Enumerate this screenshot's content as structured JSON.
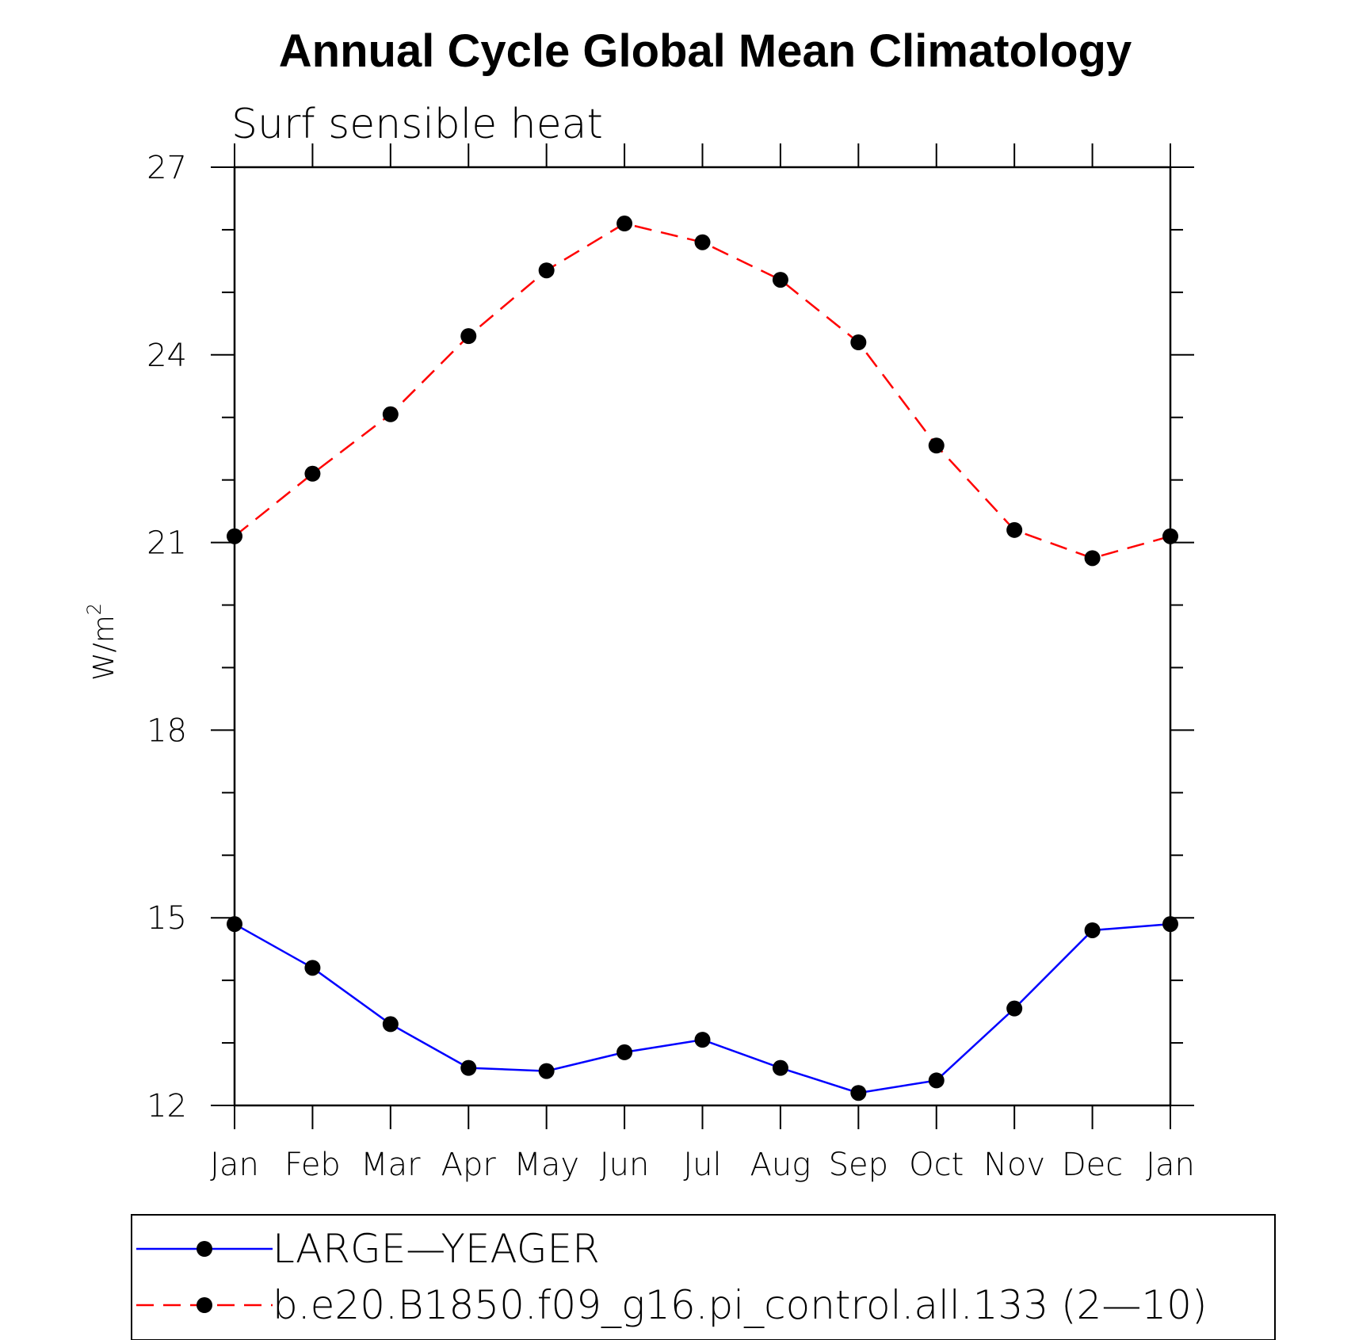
{
  "chart_data": {
    "type": "line",
    "title": "Annual Cycle Global Mean Climatology",
    "subtitle": "Surf sensible heat",
    "xlabel": "",
    "ylabel": "W/m",
    "ylabel_superscript": "2",
    "ylim": [
      12,
      27
    ],
    "yticks": [
      "12",
      "15",
      "18",
      "21",
      "24",
      "27"
    ],
    "yminor_step": 1,
    "categories": [
      "Jan",
      "Feb",
      "Mar",
      "Apr",
      "May",
      "Jun",
      "Jul",
      "Aug",
      "Sep",
      "Oct",
      "Nov",
      "Dec",
      "Jan"
    ],
    "series": [
      {
        "name": "LARGE—YEAGER",
        "color": "#0000ff",
        "dash": "solid",
        "marker": "circle",
        "values": [
          14.9,
          14.2,
          13.3,
          12.6,
          12.55,
          12.85,
          13.05,
          12.6,
          12.2,
          12.4,
          13.55,
          14.8,
          14.9
        ]
      },
      {
        "name": "b.e20.B1850.f09_g16.pi_control.all.133 (2—10)",
        "color": "#ff0000",
        "dash": "dashed",
        "marker": "circle",
        "values": [
          21.1,
          22.1,
          23.05,
          24.3,
          25.35,
          26.1,
          25.8,
          25.2,
          24.2,
          22.55,
          21.2,
          20.75,
          21.1
        ]
      }
    ]
  }
}
